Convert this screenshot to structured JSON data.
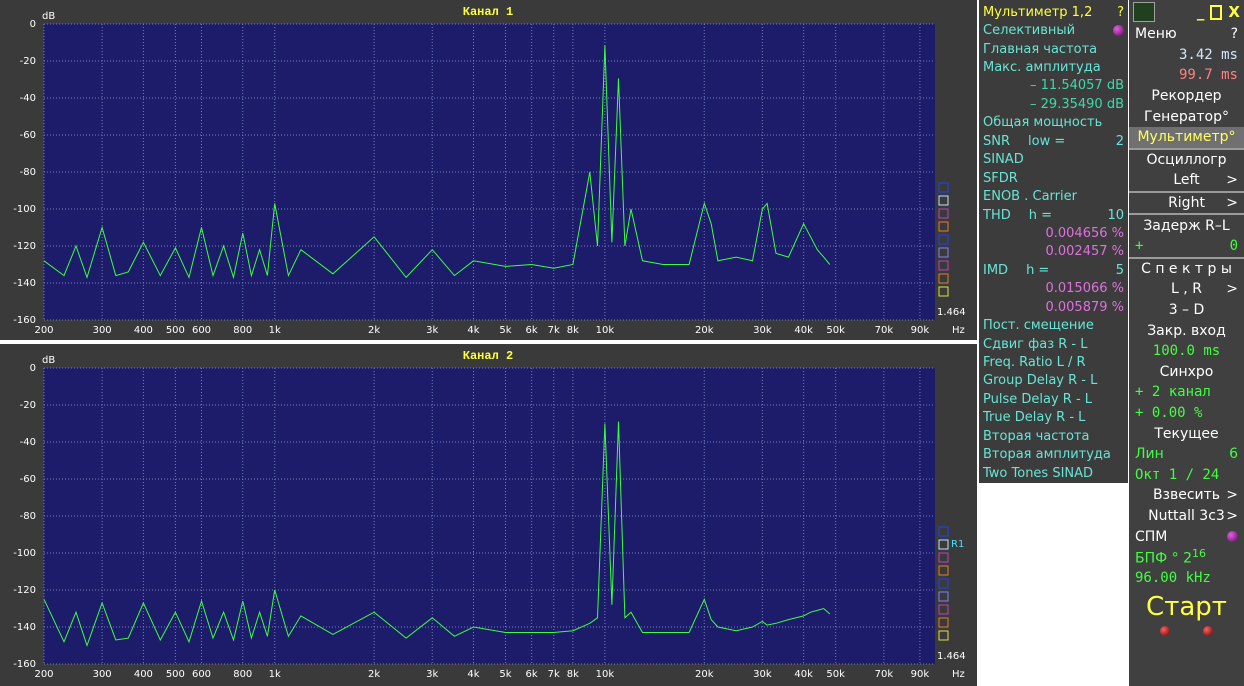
{
  "chart_data": [
    {
      "type": "line",
      "title": "Канал 1",
      "ylabel": "dB",
      "xlabel": "Hz",
      "corner_label": "1.464",
      "xscale": "log",
      "grid": true,
      "xlim": [
        200,
        100000
      ],
      "ylim": [
        -160,
        0
      ],
      "xticks": [
        200,
        300,
        400,
        500,
        600,
        800,
        {
          "value": 1000,
          "label": "1k"
        },
        {
          "value": 2000,
          "label": "2k"
        },
        {
          "value": 3000,
          "label": "3k"
        },
        {
          "value": 4000,
          "label": "4k"
        },
        {
          "value": 5000,
          "label": "5k"
        },
        {
          "value": 6000,
          "label": "6k"
        },
        {
          "value": 7000,
          "label": "7k"
        },
        {
          "value": 8000,
          "label": "8k"
        },
        {
          "value": 10000,
          "label": "10k"
        },
        {
          "value": 20000,
          "label": "20k"
        },
        {
          "value": 30000,
          "label": "30k"
        },
        {
          "value": 40000,
          "label": "40k"
        },
        {
          "value": 50000,
          "label": "50k"
        },
        {
          "value": 70000,
          "label": "70k"
        },
        {
          "value": 90000,
          "label": "90k"
        }
      ],
      "yticks": [
        0,
        -20,
        -40,
        -60,
        -80,
        -100,
        -120,
        -140,
        -160
      ],
      "x": [
        200,
        230,
        250,
        270,
        300,
        330,
        360,
        400,
        450,
        500,
        550,
        600,
        650,
        700,
        750,
        800,
        850,
        900,
        950,
        1000,
        1100,
        1200,
        1500,
        2000,
        2500,
        3000,
        3500,
        4000,
        5000,
        6000,
        7000,
        8000,
        9000,
        9500,
        10000,
        10500,
        11000,
        11500,
        12000,
        13000,
        15000,
        18000,
        20000,
        21000,
        22000,
        25000,
        28000,
        30000,
        31000,
        33000,
        36000,
        40000,
        42000,
        44000,
        46000,
        48000
      ],
      "series": [
        {
          "color": "#3cff3c",
          "values": [
            -128,
            -136,
            -120,
            -137,
            -110,
            -136,
            -134,
            -118,
            -136,
            -121,
            -137,
            -110,
            -136,
            -120,
            -137,
            -113,
            -136,
            -122,
            -136,
            -97,
            -136,
            -122,
            -135,
            -115,
            -137,
            -122,
            -136,
            -128,
            -131,
            -130,
            -132,
            -130,
            -80,
            -120,
            -11.5,
            -118,
            -29.4,
            -120,
            -100,
            -128,
            -130,
            -130,
            -97,
            -108,
            -128,
            -126,
            -128,
            -100,
            -97,
            -124,
            -126,
            -108,
            -115,
            -122,
            -126,
            -130
          ]
        }
      ]
    },
    {
      "type": "line",
      "title": "Канал 2",
      "ylabel": "dB",
      "xlabel": "Hz",
      "corner_label": "1.464",
      "marker_label": "R1",
      "xscale": "log",
      "grid": true,
      "xlim": [
        200,
        100000
      ],
      "ylim": [
        -160,
        0
      ],
      "xticks": [
        200,
        300,
        400,
        500,
        600,
        800,
        {
          "value": 1000,
          "label": "1k"
        },
        {
          "value": 2000,
          "label": "2k"
        },
        {
          "value": 3000,
          "label": "3k"
        },
        {
          "value": 4000,
          "label": "4k"
        },
        {
          "value": 5000,
          "label": "5k"
        },
        {
          "value": 6000,
          "label": "6k"
        },
        {
          "value": 7000,
          "label": "7k"
        },
        {
          "value": 8000,
          "label": "8k"
        },
        {
          "value": 10000,
          "label": "10k"
        },
        {
          "value": 20000,
          "label": "20k"
        },
        {
          "value": 30000,
          "label": "30k"
        },
        {
          "value": 40000,
          "label": "40k"
        },
        {
          "value": 50000,
          "label": "50k"
        },
        {
          "value": 70000,
          "label": "70k"
        },
        {
          "value": 90000,
          "label": "90k"
        }
      ],
      "yticks": [
        0,
        -20,
        -40,
        -60,
        -80,
        -100,
        -120,
        -140,
        -160
      ],
      "x": [
        200,
        230,
        250,
        270,
        300,
        330,
        360,
        400,
        450,
        500,
        550,
        600,
        650,
        700,
        750,
        800,
        850,
        900,
        950,
        1000,
        1100,
        1200,
        1500,
        2000,
        2500,
        3000,
        3500,
        4000,
        5000,
        6000,
        7000,
        8000,
        9000,
        9500,
        10000,
        10500,
        11000,
        11500,
        12000,
        13000,
        15000,
        18000,
        20000,
        21000,
        22000,
        25000,
        28000,
        30000,
        31000,
        33000,
        36000,
        40000,
        42000,
        44000,
        46000,
        48000
      ],
      "series": [
        {
          "color": "#3cff3c",
          "values": [
            -125,
            -148,
            -132,
            -150,
            -127,
            -147,
            -146,
            -127,
            -147,
            -132,
            -148,
            -126,
            -146,
            -132,
            -147,
            -126,
            -146,
            -132,
            -145,
            -120,
            -145,
            -134,
            -144,
            -132,
            -146,
            -135,
            -145,
            -140,
            -143,
            -143,
            -143,
            -142,
            -138,
            -135,
            -30,
            -128,
            -29,
            -135,
            -132,
            -143,
            -143,
            -143,
            -125,
            -136,
            -140,
            -142,
            -140,
            -137,
            -139,
            -138,
            -136,
            -134,
            -132,
            -131,
            -130,
            -133
          ]
        }
      ]
    }
  ],
  "multimeter": {
    "title": "Мультиметр 1,2",
    "help": "?",
    "rows": [
      {
        "text": "Селективный",
        "dot": true
      },
      {
        "text": "Главная частота"
      },
      {
        "text": "Макс. амплитуда"
      },
      {
        "text": "– 11.54057 dB",
        "color": "#40d8a8",
        "align": "right"
      },
      {
        "text": "– 29.35490 dB",
        "color": "#40d8a8",
        "align": "right"
      },
      {
        "text": "Общая мощность"
      },
      {
        "text": "SNR",
        "mid": "low =",
        "right": "2"
      },
      {
        "text": "SINAD"
      },
      {
        "text": "SFDR"
      },
      {
        "text": "ENOB . Carrier"
      },
      {
        "text": "THD",
        "mid": "h =",
        "right": "10"
      },
      {
        "text": "0.004656 %",
        "color": "#e070e0",
        "align": "right"
      },
      {
        "text": "0.002457 %",
        "color": "#e070e0",
        "align": "right"
      },
      {
        "text": "IMD",
        "mid": "h =",
        "right": "5"
      },
      {
        "text": "0.015066 %",
        "color": "#e070e0",
        "align": "right"
      },
      {
        "text": "0.005879 %",
        "color": "#e070e0",
        "align": "right"
      },
      {
        "text": "Пост. смещение"
      },
      {
        "text": "Сдвиг фаз R - L"
      },
      {
        "text": "Freq. Ratio  L / R"
      },
      {
        "text": "Group Delay R - L"
      },
      {
        "text": "Pulse Delay R - L"
      },
      {
        "text": "True Delay R - L"
      },
      {
        "text": "Вторая частота"
      },
      {
        "text": "Вторая амплитуда"
      },
      {
        "text": "Two Tones SINAD"
      }
    ]
  },
  "menu": {
    "window_buttons": [
      "_",
      "X"
    ],
    "sections": [
      [
        {
          "text": "Меню",
          "right": "?",
          "align": "left"
        },
        {
          "text": "3.42 ms",
          "align": "right",
          "color": "#d0e8ff",
          "mono": true
        },
        {
          "text": "99.7 ms",
          "align": "right",
          "color": "#ff8080",
          "mono": true
        },
        {
          "text": "Рекордер"
        },
        {
          "text": "Генератор°"
        },
        {
          "text": "Мультиметр°",
          "color": "#ffff60",
          "bg": "#707070"
        }
      ],
      [
        {
          "text": "Осциллогр"
        },
        {
          "text": "Left",
          "right": ">"
        }
      ],
      [
        {
          "text": "Right",
          "right": ">"
        }
      ],
      [
        {
          "text": "Задерж  R–L"
        },
        {
          "text": "+",
          "right": "0",
          "align": "left",
          "color": "#40ff40",
          "mono": true
        }
      ],
      [
        {
          "text": "С п е к т р ы"
        },
        {
          "text": "L , R",
          "right": ">"
        },
        {
          "text": "3 – D"
        },
        {
          "text": "Закр. вход"
        },
        {
          "text": "100.0 ms",
          "color": "#40ff40",
          "mono": true
        },
        {
          "text": "Синхро"
        },
        {
          "text": "+  2 канал",
          "align": "left",
          "color": "#40ff40",
          "mono": true
        },
        {
          "text": "+  0.00 %",
          "align": "left",
          "color": "#40ff40",
          "mono": true
        },
        {
          "text": "Текущее"
        },
        {
          "text": "Лин",
          "right": "6",
          "align": "left",
          "color": "#40ff40"
        },
        {
          "text": "Окт  1 / 24",
          "align": "left",
          "color": "#40ff40",
          "mono": true
        },
        {
          "text": "Взвесить",
          "right": ">"
        },
        {
          "text": "Nuttall 3c3",
          "right": ">"
        },
        {
          "text": "СПМ",
          "align": "left",
          "dot": true
        },
        {
          "text": "БПФ ° 2",
          "sup": "16",
          "align": "left",
          "color": "#40ff40"
        },
        {
          "text": "96.00 kHz",
          "align": "left",
          "color": "#40ff40",
          "mono": true
        },
        {
          "text": "Старт",
          "color": "#ffff40",
          "big": true
        }
      ]
    ]
  }
}
